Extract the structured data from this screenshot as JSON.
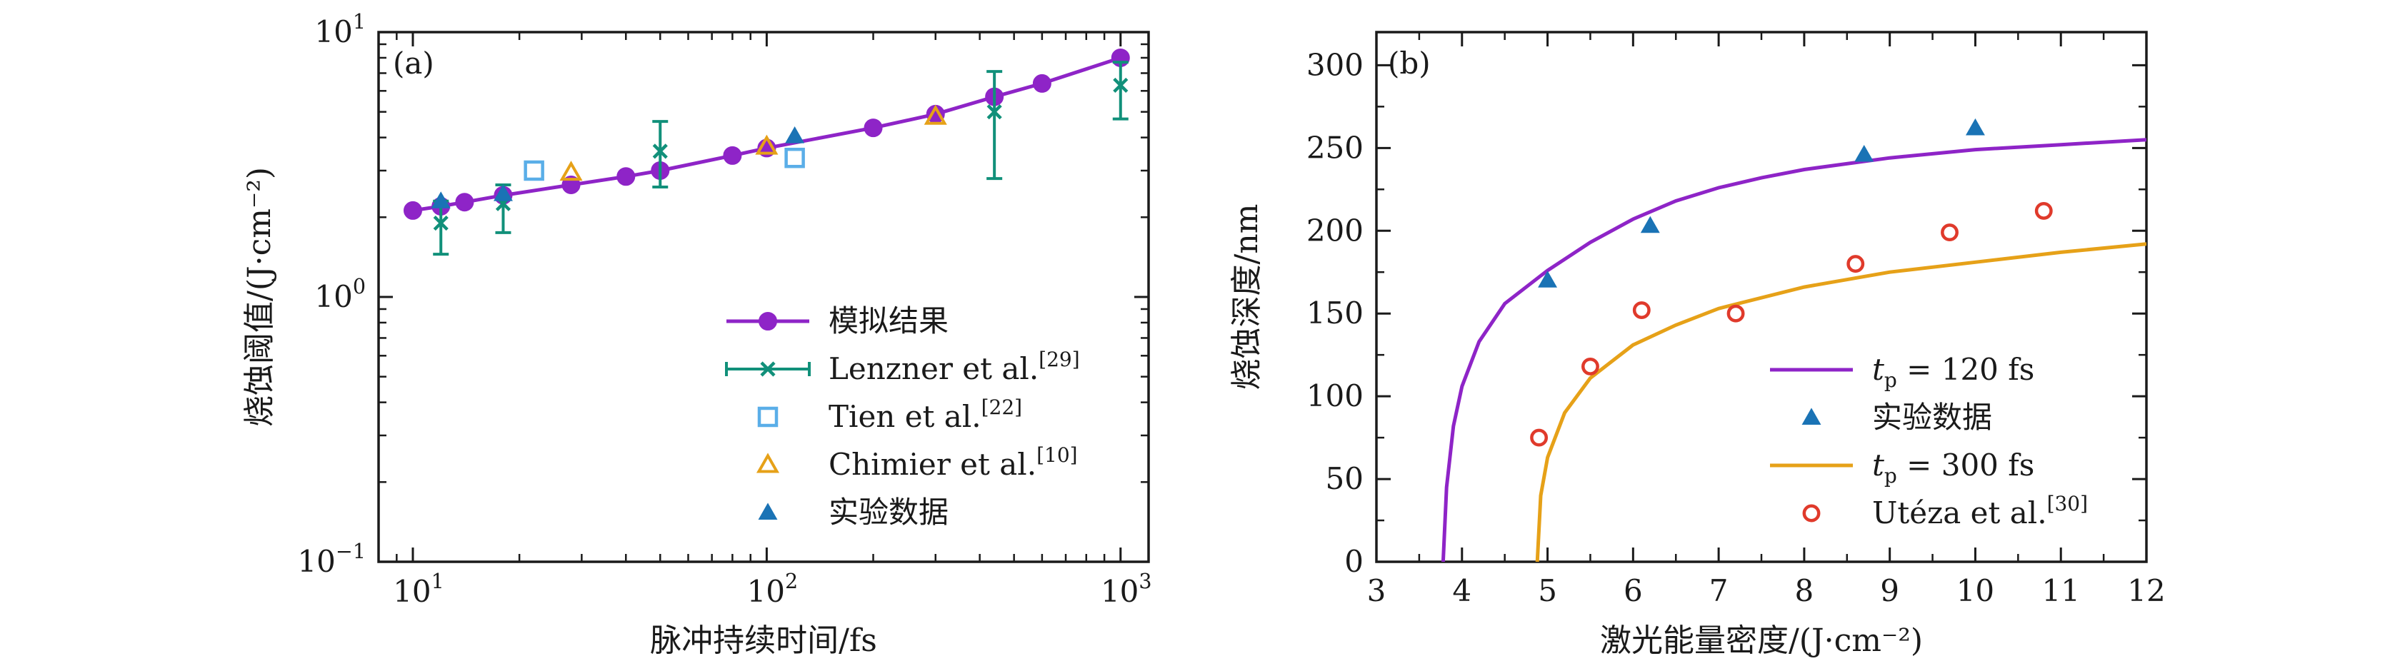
{
  "chart_data": [
    {
      "panel": "(a)",
      "type": "line",
      "x_scale": "log",
      "y_scale": "log",
      "xlabel": "脉冲持续时间/fs",
      "ylabel": "烧蚀阈值/(J·cm⁻²)",
      "xlim": [
        8,
        1200
      ],
      "ylim": [
        0.1,
        10
      ],
      "x_ticks": [
        {
          "value": 10,
          "base": "10",
          "exp": "1"
        },
        {
          "value": 100,
          "base": "10",
          "exp": "2"
        },
        {
          "value": 1000,
          "base": "10",
          "exp": "3"
        }
      ],
      "y_ticks": [
        {
          "value": 0.1,
          "base": "10",
          "exp": "−1"
        },
        {
          "value": 1,
          "base": "10",
          "exp": "0"
        },
        {
          "value": 10,
          "base": "10",
          "exp": "1"
        }
      ],
      "series": [
        {
          "name": "模拟结果",
          "sup": "",
          "marker": "circle-line",
          "color": "#8e24c7",
          "x": [
            10,
            12,
            14,
            18,
            28,
            40,
            50,
            80,
            100,
            200,
            300,
            440,
            600,
            1000
          ],
          "y": [
            2.12,
            2.2,
            2.28,
            2.42,
            2.65,
            2.85,
            3.0,
            3.42,
            3.65,
            4.35,
            4.9,
            5.7,
            6.4,
            8.0
          ]
        },
        {
          "name": "Lenzner et al.",
          "sup": "[29]",
          "marker": "x-errorbar",
          "color": "#11907a",
          "x": [
            12,
            18,
            50,
            440,
            1000
          ],
          "y": [
            1.9,
            2.25,
            3.55,
            5.0,
            6.3
          ],
          "y_low": [
            1.45,
            1.75,
            2.6,
            2.8,
            4.7
          ],
          "y_high": [
            2.3,
            2.65,
            4.6,
            7.1,
            7.7
          ]
        },
        {
          "name": "Tien et al.",
          "sup": "[22]",
          "marker": "open-square",
          "color": "#5aaee8",
          "x": [
            22,
            120
          ],
          "y": [
            3.0,
            3.35
          ]
        },
        {
          "name": "Chimier et al.",
          "sup": "[10]",
          "marker": "open-triangle",
          "color": "#e6a118",
          "x": [
            28,
            100,
            300
          ],
          "y": [
            2.95,
            3.7,
            4.8
          ]
        },
        {
          "name": "实验数据",
          "sup": "",
          "marker": "filled-triangle",
          "color": "#1a73b5",
          "x": [
            12,
            18,
            120
          ],
          "y": [
            2.3,
            2.45,
            4.05
          ]
        }
      ],
      "legend_position": "bottom-right"
    },
    {
      "panel": "(b)",
      "type": "line",
      "xlabel": "激光能量密度/(J·cm⁻²)",
      "ylabel": "烧蚀深度/nm",
      "xlim": [
        3,
        12
      ],
      "ylim": [
        0,
        320
      ],
      "x_ticks": [
        3,
        4,
        5,
        6,
        7,
        8,
        9,
        10,
        11,
        12
      ],
      "y_ticks": [
        0,
        50,
        100,
        150,
        200,
        250,
        300
      ],
      "series": [
        {
          "name_main": "t",
          "name_sub": "p",
          "name_rest": " = 120 fs",
          "marker": "line",
          "color": "#8e24c7",
          "x": [
            3.78,
            3.82,
            3.9,
            4.0,
            4.2,
            4.5,
            5.0,
            5.5,
            6.0,
            6.5,
            7.0,
            7.5,
            8.0,
            9.0,
            10.0,
            11.0,
            12.0
          ],
          "y": [
            0,
            45,
            82,
            106,
            133,
            156,
            176,
            193,
            207,
            218,
            226,
            232,
            237,
            244,
            249,
            252,
            255
          ]
        },
        {
          "name": "实验数据",
          "sup": "",
          "marker": "filled-triangle",
          "color": "#1a73b5",
          "x": [
            5.0,
            6.2,
            8.7,
            10.0
          ],
          "y": [
            170,
            203,
            246,
            262
          ]
        },
        {
          "name_main": "t",
          "name_sub": "p",
          "name_rest": " = 300 fs",
          "marker": "line",
          "color": "#e6a118",
          "x": [
            4.88,
            4.92,
            5.0,
            5.2,
            5.5,
            6.0,
            6.5,
            7.0,
            8.0,
            9.0,
            10.0,
            11.0,
            12.0
          ],
          "y": [
            0,
            40,
            63,
            90,
            111,
            131,
            143,
            153,
            166,
            175,
            181,
            187,
            192
          ]
        },
        {
          "name": "Utéza et al.",
          "sup": "[30]",
          "marker": "open-circle",
          "color": "#e03a2b",
          "x": [
            4.9,
            5.5,
            6.1,
            7.2,
            8.6,
            9.7,
            10.8
          ],
          "y": [
            75,
            118,
            152,
            150,
            180,
            199,
            212
          ]
        }
      ],
      "legend_position": "bottom-right"
    }
  ]
}
